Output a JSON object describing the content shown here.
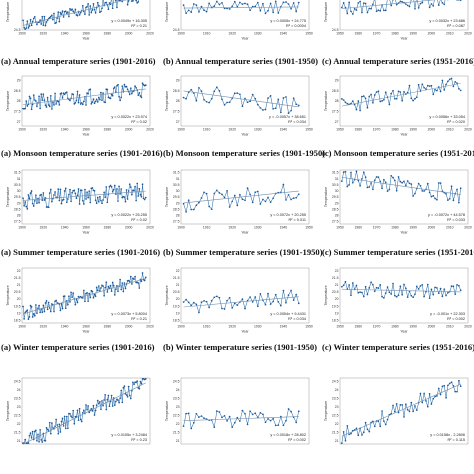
{
  "figure": {
    "columns": 3,
    "rows": 5,
    "series_color": "#2f6fad",
    "marker_color": "#1f5a97",
    "trend_color": "#6f8fb0"
  },
  "chart_data": [
    {
      "type": "line",
      "caption": "(a) Annual temperature series (1901-2016)",
      "xlabel": "Year",
      "ylabel": "Temperature",
      "x_range": [
        1900,
        2020
      ],
      "xticks": [
        "1900",
        "1920",
        "1940",
        "1960",
        "1980",
        "2000",
        "2020"
      ],
      "yticks": [
        "24.5"
      ],
      "ylim": [
        24.5,
        26.5
      ],
      "trend": {
        "equation": "y = 0.0049x + 16.305",
        "r2": "R² = 0.21",
        "slope": 0.0049,
        "intercept": 16.305
      },
      "mean": 25.6,
      "amplitude": 0.35,
      "seed": 11
    },
    {
      "type": "line",
      "caption": "(b) Annual temperature series (1901-1950)",
      "xlabel": "Year",
      "ylabel": "Temperature",
      "x_range": [
        1900,
        1950
      ],
      "xticks": [
        "1900",
        "1910",
        "1920",
        "1930",
        "1940",
        "1950"
      ],
      "yticks": [
        "24.5"
      ],
      "ylim": [
        24.5,
        26.5
      ],
      "trend": {
        "equation": "y = 0.0005x + 24.775",
        "r2": "R² = 0.0004",
        "slope": 0.0005,
        "intercept": 24.775
      },
      "mean": 25.75,
      "amplitude": 0.35,
      "seed": 12
    },
    {
      "type": "line",
      "caption": "(c) Annual temperature series (1951-2016)",
      "xlabel": "Year",
      "ylabel": "Temperature",
      "x_range": [
        1950,
        2020
      ],
      "xticks": [
        "1950",
        "1960",
        "1970",
        "1980",
        "1990",
        "2000",
        "2010",
        "2020"
      ],
      "yticks": [
        "24.5"
      ],
      "ylim": [
        24.5,
        26.5
      ],
      "trend": {
        "equation": "y = 0.0032x + 23.686",
        "r2": "R² = 0.087",
        "slope": 0.0032,
        "intercept": 23.686
      },
      "mean": 26.0,
      "amplitude": 0.4,
      "seed": 13
    },
    {
      "type": "line",
      "caption": "(a) Monsoon temperature series (1901-2016)",
      "xlabel": "Year",
      "ylabel": "Temperature",
      "x_range": [
        1900,
        2020
      ],
      "xticks": [
        "1900",
        "1920",
        "1940",
        "1960",
        "1980",
        "2000",
        "2020"
      ],
      "yticks": [
        "29",
        "28.5",
        "28",
        "27.5",
        "27"
      ],
      "ylim": [
        26.8,
        29.2
      ],
      "trend": {
        "equation": "y = 0.0022x + 23.974",
        "r2": "R² = 0.02",
        "slope": 0.0022,
        "intercept": 23.974
      },
      "mean": 28.2,
      "amplitude": 0.4,
      "seed": 21
    },
    {
      "type": "line",
      "caption": "(b) Monsoon temperature series (1901-1950)",
      "xlabel": "Year",
      "ylabel": "Temperature",
      "x_range": [
        1900,
        1950
      ],
      "xticks": [
        "1900",
        "1910",
        "1920",
        "1930",
        "1940",
        "1950"
      ],
      "yticks": [
        "29",
        "28.5",
        "28",
        "27.5",
        "27"
      ],
      "ylim": [
        26.8,
        29.2
      ],
      "trend": {
        "equation": "y = -0.0057x + 38.651",
        "r2": "R² = 0.034",
        "slope": -0.0057,
        "intercept": 38.651
      },
      "mean": 28.1,
      "amplitude": 0.4,
      "seed": 22
    },
    {
      "type": "line",
      "caption": "(c) Monsoon temperature series (1951-2016)",
      "xlabel": "Year",
      "ylabel": "Temperature",
      "x_range": [
        1950,
        2020
      ],
      "xticks": [
        "1950",
        "1960",
        "1970",
        "1980",
        "1990",
        "2000",
        "2010",
        "2020"
      ],
      "yticks": [
        "29",
        "28.5",
        "28",
        "27.5",
        "27"
      ],
      "ylim": [
        26.8,
        29.2
      ],
      "trend": {
        "equation": "y = 0.0056x + 33.054",
        "r2": "R² = 0.020",
        "slope": 0.0056,
        "intercept": 33.054
      },
      "mean": 28.3,
      "amplitude": 0.4,
      "seed": 23
    },
    {
      "type": "line",
      "caption": "(a) Summer temperature series (1901-2016)",
      "xlabel": "Year",
      "ylabel": "Temperature",
      "x_range": [
        1900,
        2020
      ],
      "xticks": [
        "1900",
        "1920",
        "1940",
        "1960",
        "1980",
        "2000",
        "2020"
      ],
      "yticks": [
        "31.5",
        "31",
        "30.5",
        "30",
        "29.5",
        "29",
        "28.5",
        "28",
        "27.5"
      ],
      "ylim": [
        27.3,
        31.7
      ],
      "trend": {
        "equation": "y = 0.0022x + 25.255",
        "r2": "R² = 0.02",
        "slope": 0.0022,
        "intercept": 25.255
      },
      "mean": 29.6,
      "amplitude": 0.75,
      "seed": 31
    },
    {
      "type": "line",
      "caption": "(b) Summer temperature series (1901-1950)",
      "xlabel": "Year",
      "ylabel": "Temperature",
      "x_range": [
        1900,
        1950
      ],
      "xticks": [
        "1900",
        "1910",
        "1920",
        "1930",
        "1940",
        "1950"
      ],
      "yticks": [
        "31.5",
        "31",
        "30.5",
        "30",
        "29.5",
        "29",
        "28.5",
        "28",
        "27.5"
      ],
      "ylim": [
        27.3,
        31.7
      ],
      "trend": {
        "equation": "y = 0.0072x + 20.255",
        "r2": "R² = 0.011",
        "slope": 0.0072,
        "intercept": 20.255
      },
      "mean": 29.5,
      "amplitude": 0.75,
      "seed": 32
    },
    {
      "type": "line",
      "caption": "(c) Summer temperature series (1951-2016)",
      "xlabel": "Year",
      "ylabel": "Temperature",
      "x_range": [
        1950,
        2020
      ],
      "xticks": [
        "1950",
        "1960",
        "1970",
        "1980",
        "1990",
        "2000",
        "2010",
        "2020"
      ],
      "yticks": [
        "31.5",
        "31",
        "30.5",
        "30",
        "29.5",
        "29",
        "28.5",
        "28",
        "27.5"
      ],
      "ylim": [
        27.3,
        31.7
      ],
      "trend": {
        "equation": "y = -0.0072x + 44.578",
        "r2": "R² = 0.033",
        "slope": -0.0072,
        "intercept": 44.578
      },
      "mean": 30.4,
      "amplitude": 0.75,
      "seed": 33
    },
    {
      "type": "line",
      "caption": "(a) Winter temperature series (1901-2016)",
      "xlabel": "Year",
      "ylabel": "Temperature",
      "x_range": [
        1900,
        2020
      ],
      "xticks": [
        "1900",
        "1920",
        "1940",
        "1960",
        "1980",
        "2000",
        "2020"
      ],
      "yticks": [
        "22",
        "21.5",
        "21",
        "20.5",
        "20",
        "19.5",
        "19",
        "18.5"
      ],
      "ylim": [
        18.3,
        22.2
      ],
      "trend": {
        "equation": "y = 0.0073x + 5.8004",
        "r2": "R² = 0.21",
        "slope": 0.0073,
        "intercept": 5.8004
      },
      "mean": 20.2,
      "amplitude": 0.55,
      "seed": 41
    },
    {
      "type": "line",
      "caption": "(b) Winter temperature series (1901-1950)",
      "xlabel": "Year",
      "ylabel": "Temperature",
      "x_range": [
        1900,
        1950
      ],
      "xticks": [
        "1900",
        "1910",
        "1920",
        "1930",
        "1940",
        "1950"
      ],
      "yticks": [
        "22",
        "21.5",
        "21",
        "20.5",
        "20",
        "19.5",
        "19",
        "18.5"
      ],
      "ylim": [
        18.3,
        22.2
      ],
      "trend": {
        "equation": "y = 0.0054x + 9.4431",
        "r2": "R² = 0.034",
        "slope": 0.0054,
        "intercept": 9.4431
      },
      "mean": 19.8,
      "amplitude": 0.55,
      "seed": 42
    },
    {
      "type": "line",
      "caption": "(c) Winter temperature series (1951-2016)",
      "xlabel": "Year",
      "ylabel": "Temperature",
      "x_range": [
        1950,
        2020
      ],
      "xticks": [
        "1950",
        "1960",
        "1970",
        "1980",
        "1990",
        "2000",
        "2010",
        "2020"
      ],
      "yticks": [
        "22",
        "21.5",
        "21",
        "20.5",
        "20",
        "19.5",
        "19",
        "18.5"
      ],
      "ylim": [
        18.3,
        22.2
      ],
      "trend": {
        "equation": "y = -0.001x + 22.303",
        "r2": "R² = 0.002",
        "slope": -0.001,
        "intercept": 22.303
      },
      "mean": 20.6,
      "amplitude": 0.55,
      "seed": 43
    },
    {
      "type": "line",
      "caption": "",
      "xlabel": "",
      "ylabel": "Temperature",
      "x_range": [
        1900,
        2020
      ],
      "xticks": [],
      "yticks": [
        "24.5",
        "24",
        "23.5",
        "23",
        "22.5",
        "22",
        "21.5",
        "21"
      ],
      "ylim": [
        20.8,
        24.7
      ],
      "trend": {
        "equation": "y = 0.0105x + 3.2484",
        "r2": "R² = 0.23",
        "slope": 0.0105,
        "intercept": 3.2484
      },
      "mean": 22.6,
      "amplitude": 0.5,
      "seed": 51
    },
    {
      "type": "line",
      "caption": "",
      "xlabel": "",
      "ylabel": "Temperature",
      "x_range": [
        1900,
        1950
      ],
      "xticks": [],
      "yticks": [
        "24.5",
        "24",
        "23.5",
        "23",
        "22.5",
        "22",
        "21.5",
        "21"
      ],
      "ylim": [
        20.8,
        24.7
      ],
      "trend": {
        "equation": "y = 0.0018x + 28.802",
        "r2": "R² = 0.002",
        "slope": 0.0018,
        "intercept": 28.802
      },
      "mean": 22.3,
      "amplitude": 0.5,
      "seed": 52
    },
    {
      "type": "line",
      "caption": "",
      "xlabel": "",
      "ylabel": "Temperature",
      "x_range": [
        1950,
        2020
      ],
      "xticks": [],
      "yticks": [
        "24.5",
        "24",
        "23.5",
        "23",
        "22.5",
        "22",
        "21.5",
        "21"
      ],
      "ylim": [
        20.8,
        24.7
      ],
      "trend": {
        "equation": "y = 0.0158x - 2.2806",
        "r2": "R² = 0.115",
        "slope": 0.0158,
        "intercept": -2.2806
      },
      "mean": 22.8,
      "amplitude": 0.5,
      "seed": 53
    }
  ]
}
